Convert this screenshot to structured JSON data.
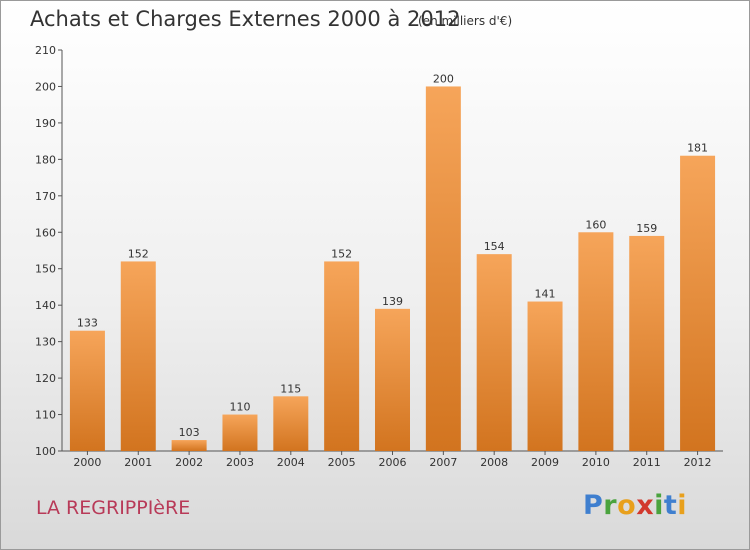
{
  "header": {
    "title": "Achats et Charges Externes 2000 à 2012",
    "subtitle": "(en milliers d'€)"
  },
  "footer": {
    "place": "LA REGRIPPIèRE",
    "brand_letters": [
      "P",
      "r",
      "o",
      "x",
      "i",
      "t",
      "i"
    ]
  },
  "colors": {
    "bar_top": "#f6a55a",
    "bar_bottom": "#d2741f",
    "brand_letters": [
      "#3f7fcf",
      "#4aa33e",
      "#e8a01c",
      "#d2382d",
      "#4aa33e",
      "#3f7fcf",
      "#e8a01c"
    ]
  },
  "chart_data": {
    "type": "bar",
    "title": "Achats et Charges Externes 2000 à 2012",
    "subtitle": "(en milliers d'€)",
    "categories": [
      "2000",
      "2001",
      "2002",
      "2003",
      "2004",
      "2005",
      "2006",
      "2007",
      "2008",
      "2009",
      "2010",
      "2011",
      "2012"
    ],
    "values": [
      133,
      152,
      103,
      110,
      115,
      152,
      139,
      200,
      154,
      141,
      160,
      159,
      181
    ],
    "ylim": [
      100,
      210
    ],
    "yticks": [
      100,
      110,
      120,
      130,
      140,
      150,
      160,
      170,
      180,
      190,
      200,
      210
    ],
    "grid": false,
    "data_labels": true
  }
}
